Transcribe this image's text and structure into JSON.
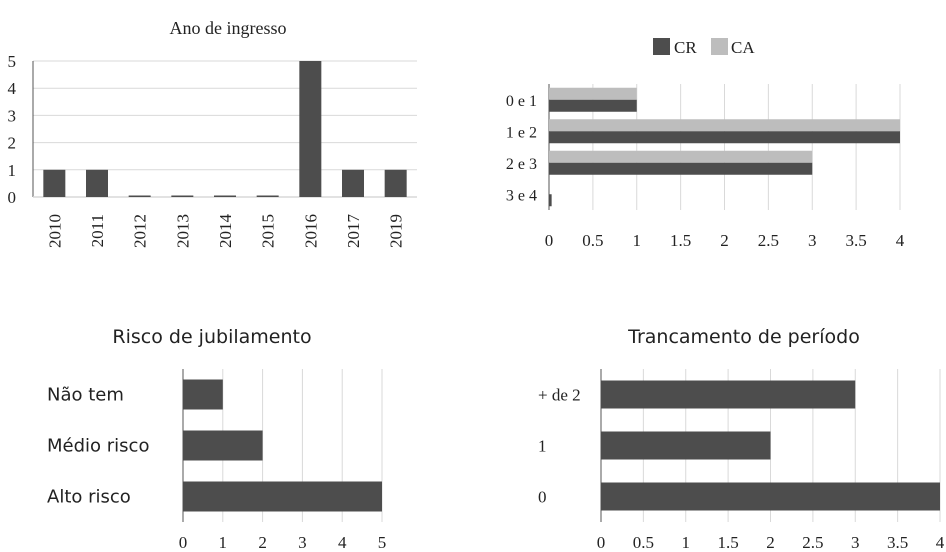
{
  "colors": {
    "dark_bar": "#4d4d4d",
    "light_bar": "#bdbdbd",
    "grid": "#d9d9d9",
    "axis": "#555555"
  },
  "chart_data": [
    {
      "id": "ingresso",
      "type": "bar",
      "title": "Ano de ingresso",
      "categories": [
        "2010",
        "2011",
        "2012",
        "2013",
        "2014",
        "2015",
        "2016",
        "2017",
        "2019"
      ],
      "values": [
        1,
        1,
        0,
        0,
        0,
        0,
        5,
        1,
        1
      ],
      "ylim": [
        0,
        5
      ],
      "yticks": [
        "0",
        "1",
        "2",
        "3",
        "4",
        "5"
      ],
      "grid": true
    },
    {
      "id": "cr-ca",
      "type": "bar",
      "orientation": "horizontal",
      "title": "",
      "legend_position": "top",
      "categories": [
        "0 e 1",
        "1 e 2",
        "2 e 3",
        "3 e 4"
      ],
      "series": [
        {
          "name": "CR",
          "values": [
            1,
            4,
            3,
            0.03
          ]
        },
        {
          "name": "CA",
          "values": [
            1,
            4,
            3,
            0
          ]
        }
      ],
      "xlim": [
        0,
        4
      ],
      "xticks": [
        "0",
        "0.5",
        "1",
        "1.5",
        "2",
        "2.5",
        "3",
        "3.5",
        "4"
      ],
      "grid": true
    },
    {
      "id": "jubilamento",
      "type": "bar",
      "orientation": "horizontal",
      "title": "Risco de jubilamento",
      "categories": [
        "Não tem",
        "Médio risco",
        "Alto risco"
      ],
      "values": [
        1,
        2,
        5
      ],
      "xlim": [
        0,
        5
      ],
      "xticks": [
        "0",
        "1",
        "2",
        "3",
        "4",
        "5"
      ],
      "grid": true
    },
    {
      "id": "trancamento",
      "type": "bar",
      "orientation": "horizontal",
      "title": "Trancamento de período",
      "categories": [
        "+ de 2",
        "1",
        "0"
      ],
      "values": [
        3,
        2,
        4
      ],
      "xlim": [
        0,
        4
      ],
      "xticks": [
        "0",
        "0.5",
        "1",
        "1.5",
        "2",
        "2.5",
        "3",
        "3.5",
        "4"
      ],
      "grid": true
    }
  ]
}
